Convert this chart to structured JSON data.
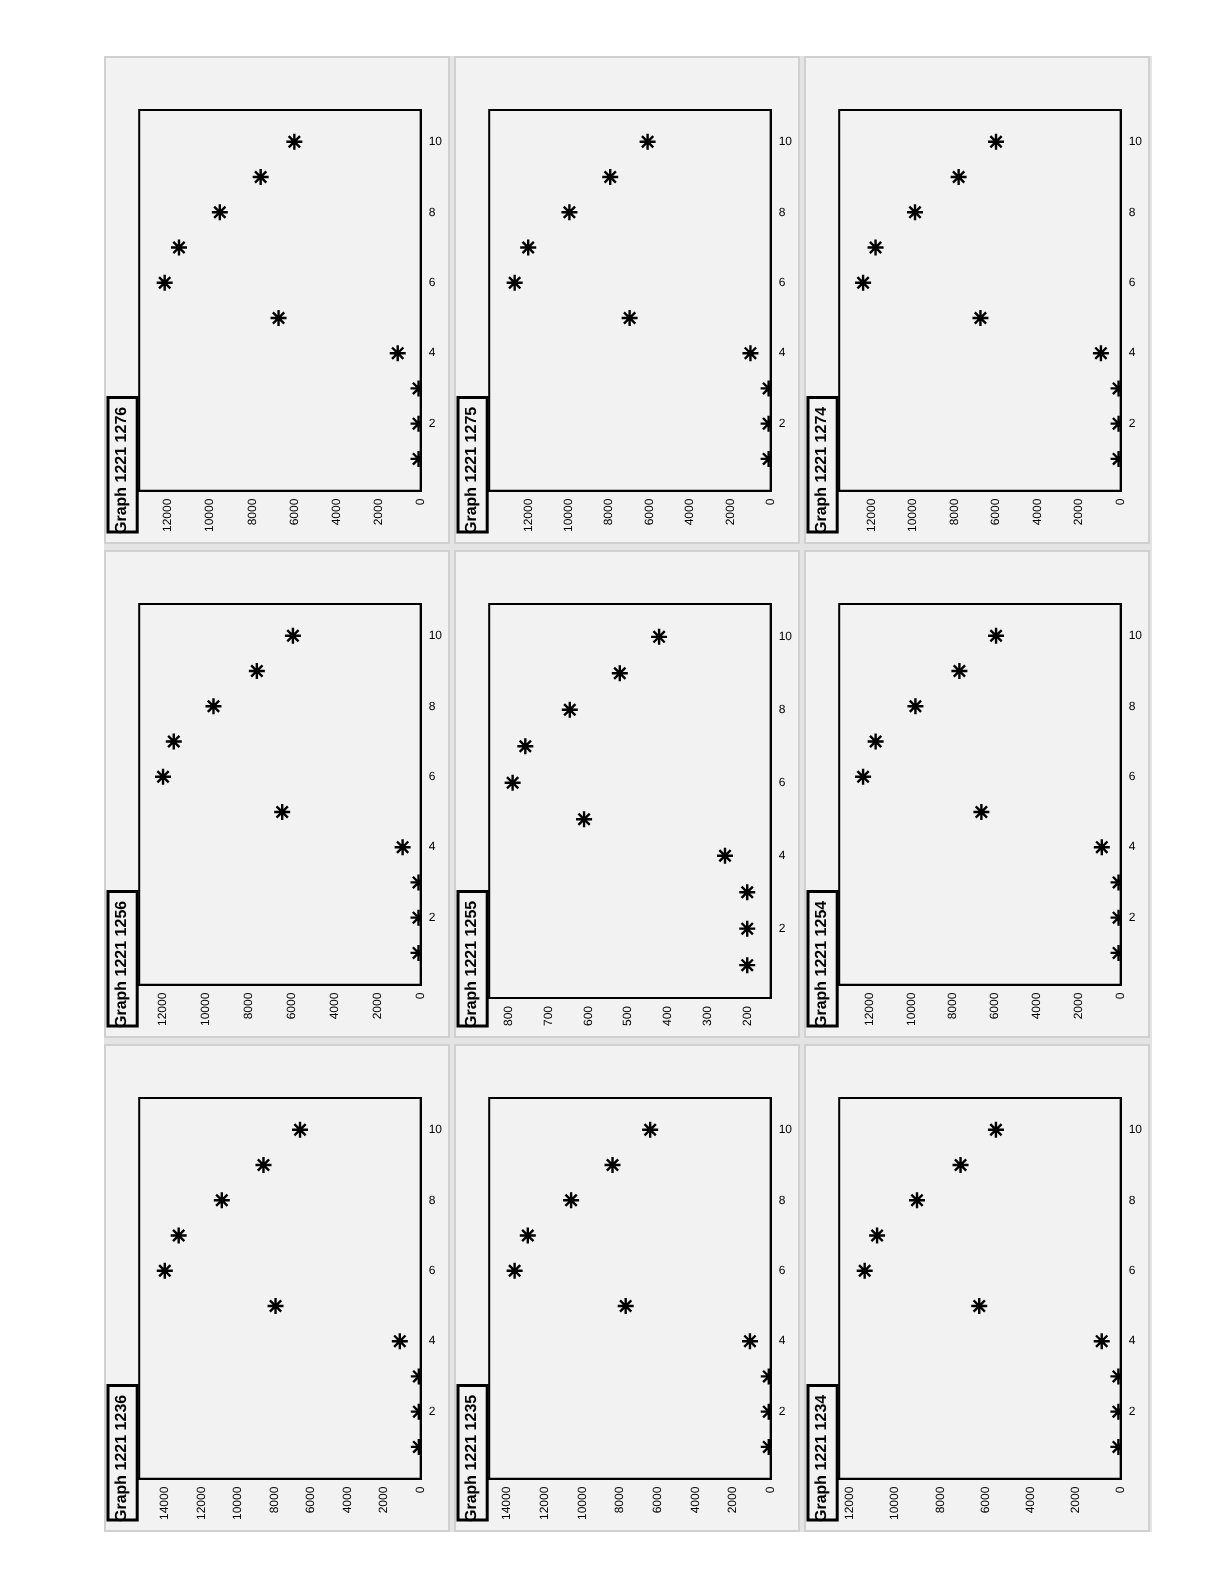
{
  "chart_data": [
    {
      "type": "scatter",
      "title": "Graph 1221 1236",
      "x": [
        100,
        100,
        100,
        1140,
        7940,
        14000,
        13240,
        10880,
        8600,
        6600
      ],
      "values": [
        1,
        2,
        3,
        4,
        5,
        6,
        7,
        8,
        9,
        10
      ],
      "color": "#000000",
      "marker": "cross",
      "xlim": [
        15400,
        0
      ],
      "ylim": [
        0.1,
        10.9
      ],
      "xticks": [
        0,
        2000,
        4000,
        6000,
        8000,
        10000,
        12000,
        14000
      ],
      "yticks": [
        2,
        4,
        6,
        8,
        10
      ]
    },
    {
      "type": "scatter",
      "title": "Graph 1221 1256",
      "x": [
        100,
        100,
        100,
        840,
        6450,
        12000,
        11500,
        9650,
        7630,
        5950
      ],
      "values": [
        1,
        2,
        3,
        4,
        5,
        6,
        7,
        8,
        9,
        10
      ],
      "color": "#000000",
      "marker": "cross",
      "xlim": [
        13110,
        0
      ],
      "ylim": [
        0.1,
        10.9
      ],
      "xticks": [
        0,
        2000,
        4000,
        6000,
        8000,
        10000,
        12000
      ],
      "yticks": [
        2,
        4,
        6,
        8,
        10
      ]
    },
    {
      "type": "scatter",
      "title": "Graph 1221 1276",
      "x": [
        100,
        100,
        100,
        1090,
        6750,
        12160,
        11480,
        9540,
        7600,
        6000
      ],
      "values": [
        1,
        2,
        3,
        4,
        5,
        6,
        7,
        8,
        9,
        10
      ],
      "color": "#000000",
      "marker": "cross",
      "xlim": [
        13370,
        0
      ],
      "ylim": [
        0.1,
        10.9
      ],
      "xticks": [
        0,
        2000,
        4000,
        6000,
        8000,
        10000,
        12000
      ],
      "yticks": [
        2,
        4,
        6,
        8,
        10
      ]
    },
    {
      "type": "scatter",
      "title": "Graph 1221 1235",
      "x": [
        100,
        100,
        100,
        1100,
        7700,
        13600,
        12900,
        10600,
        8400,
        6400
      ],
      "values": [
        1,
        2,
        3,
        4,
        5,
        6,
        7,
        8,
        9,
        10
      ],
      "color": "#000000",
      "marker": "cross",
      "xlim": [
        14950,
        0
      ],
      "ylim": [
        0.1,
        10.9
      ],
      "xticks": [
        0,
        2000,
        4000,
        6000,
        8000,
        10000,
        12000,
        14000
      ],
      "yticks": [
        2,
        4,
        6,
        8,
        10
      ]
    },
    {
      "type": "scatter",
      "title": "Graph 1221 1255",
      "x": [
        200,
        200,
        200,
        256,
        611,
        791,
        759,
        647,
        521,
        422
      ],
      "values": [
        1,
        2,
        3,
        4,
        5,
        6,
        7,
        8,
        9,
        10
      ],
      "color": "#000000",
      "marker": "cross",
      "xlim": [
        850,
        141
      ],
      "ylim": [
        0.1,
        10.9
      ],
      "xticks": [
        200,
        300,
        400,
        500,
        600,
        700,
        800
      ],
      "yticks": [
        2,
        4,
        6,
        8,
        10
      ]
    },
    {
      "type": "scatter",
      "title": "Graph 1221 1275",
      "x": [
        100,
        100,
        100,
        1000,
        6980,
        12670,
        12000,
        9960,
        7940,
        6090
      ],
      "values": [
        1,
        2,
        3,
        4,
        5,
        6,
        7,
        8,
        9,
        10
      ],
      "color": "#000000",
      "marker": "cross",
      "xlim": [
        13930,
        0
      ],
      "ylim": [
        0.1,
        10.9
      ],
      "xticks": [
        0,
        2000,
        4000,
        6000,
        8000,
        10000,
        12000
      ],
      "yticks": [
        2,
        4,
        6,
        8,
        10
      ]
    },
    {
      "type": "scatter",
      "title": "Graph 1221 1234",
      "x": [
        100,
        100,
        100,
        840,
        6270,
        11350,
        10800,
        9030,
        7100,
        5530
      ],
      "values": [
        1,
        2,
        3,
        4,
        5,
        6,
        7,
        8,
        9,
        10
      ],
      "color": "#000000",
      "marker": "cross",
      "xlim": [
        12480,
        0
      ],
      "ylim": [
        0.1,
        10.9
      ],
      "xticks": [
        0,
        2000,
        4000,
        6000,
        8000,
        10000,
        12000
      ],
      "yticks": [
        2,
        4,
        6,
        8,
        10
      ]
    },
    {
      "type": "scatter",
      "title": "Graph 1221 1254",
      "x": [
        100,
        100,
        100,
        900,
        6650,
        12300,
        11700,
        9800,
        7700,
        5950
      ],
      "values": [
        1,
        2,
        3,
        4,
        5,
        6,
        7,
        8,
        9,
        10
      ],
      "color": "#000000",
      "marker": "cross",
      "xlim": [
        13440,
        0
      ],
      "ylim": [
        0.1,
        10.9
      ],
      "xticks": [
        0,
        2000,
        4000,
        6000,
        8000,
        10000,
        12000
      ],
      "yticks": [
        2,
        4,
        6,
        8,
        10
      ]
    },
    {
      "type": "scatter",
      "title": "Graph 1221 1274",
      "x": [
        100,
        100,
        100,
        950,
        6750,
        12400,
        11800,
        9900,
        7800,
        6000
      ],
      "values": [
        1,
        2,
        3,
        4,
        5,
        6,
        7,
        8,
        9,
        10
      ],
      "color": "#000000",
      "marker": "cross",
      "xlim": [
        13550,
        0
      ],
      "ylim": [
        0.1,
        10.9
      ],
      "xticks": [
        0,
        2000,
        4000,
        6000,
        8000,
        10000,
        12000
      ],
      "yticks": [
        2,
        4,
        6,
        8,
        10
      ]
    }
  ]
}
